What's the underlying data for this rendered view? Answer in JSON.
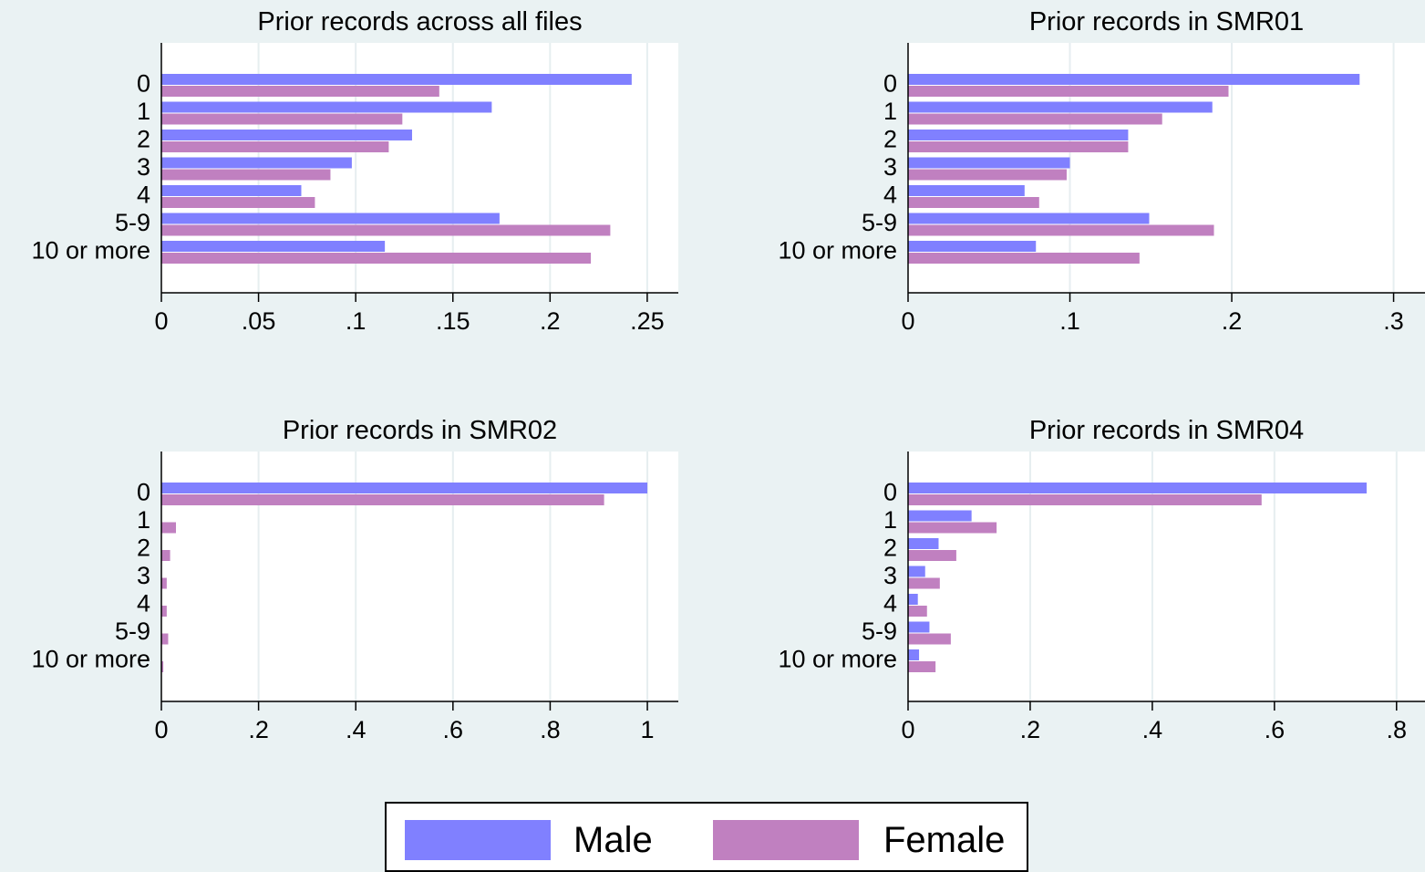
{
  "colors": {
    "male": "#8080ff",
    "female": "#c080c0",
    "plot_bg": "#ffffff",
    "grid": "#e6eef0",
    "page_bg": "#eaf2f3"
  },
  "legend": {
    "male_label": "Male",
    "female_label": "Female",
    "position": "bottom-center"
  },
  "chart_data": [
    {
      "type": "bar",
      "orientation": "horizontal",
      "title": "Prior records across all files",
      "categories": [
        "0",
        "1",
        "2",
        "3",
        "4",
        "5-9",
        "10 or more"
      ],
      "series": [
        {
          "name": "Male",
          "values": [
            0.242,
            0.17,
            0.129,
            0.098,
            0.072,
            0.174,
            0.115
          ]
        },
        {
          "name": "Female",
          "values": [
            0.143,
            0.124,
            0.117,
            0.087,
            0.079,
            0.231,
            0.221
          ]
        }
      ],
      "xlim": [
        0,
        0.266
      ],
      "xticks": [
        0,
        0.05,
        0.1,
        0.15,
        0.2,
        0.25
      ],
      "xtick_labels": [
        "0",
        ".05",
        ".1",
        ".15",
        ".2",
        ".25"
      ],
      "grid": true
    },
    {
      "type": "bar",
      "orientation": "horizontal",
      "title": "Prior records in SMR01",
      "categories": [
        "0",
        "1",
        "2",
        "3",
        "4",
        "5-9",
        "10 or more"
      ],
      "series": [
        {
          "name": "Male",
          "values": [
            0.279,
            0.188,
            0.136,
            0.1,
            0.072,
            0.149,
            0.079
          ]
        },
        {
          "name": "Female",
          "values": [
            0.198,
            0.157,
            0.136,
            0.098,
            0.081,
            0.189,
            0.143
          ]
        }
      ],
      "xlim": [
        0,
        0.3194
      ],
      "xticks": [
        0,
        0.1,
        0.2,
        0.3
      ],
      "xtick_labels": [
        "0",
        ".1",
        ".2",
        ".3"
      ],
      "grid": true
    },
    {
      "type": "bar",
      "orientation": "horizontal",
      "title": "Prior records in SMR02",
      "categories": [
        "0",
        "1",
        "2",
        "3",
        "4",
        "5-9",
        "10 or more"
      ],
      "series": [
        {
          "name": "Male",
          "values": [
            1.0,
            0,
            0,
            0,
            0,
            0,
            0
          ]
        },
        {
          "name": "Female",
          "values": [
            0.911,
            0.03,
            0.018,
            0.011,
            0.011,
            0.014,
            0.004
          ]
        }
      ],
      "xlim": [
        0,
        1.0637
      ],
      "xticks": [
        0,
        0.2,
        0.4,
        0.6,
        0.8,
        1
      ],
      "xtick_labels": [
        "0",
        ".2",
        ".4",
        ".6",
        ".8",
        "1"
      ],
      "grid": true
    },
    {
      "type": "bar",
      "orientation": "horizontal",
      "title": "Prior records in SMR04",
      "categories": [
        "0",
        "1",
        "2",
        "3",
        "4",
        "5-9",
        "10 or more"
      ],
      "series": [
        {
          "name": "Male",
          "values": [
            0.751,
            0.104,
            0.05,
            0.028,
            0.016,
            0.035,
            0.018
          ]
        },
        {
          "name": "Female",
          "values": [
            0.579,
            0.145,
            0.079,
            0.052,
            0.031,
            0.07,
            0.045
          ]
        }
      ],
      "xlim": [
        0,
        0.8466
      ],
      "xticks": [
        0,
        0.2,
        0.4,
        0.6,
        0.8
      ],
      "xtick_labels": [
        "0",
        ".2",
        ".4",
        ".6",
        ".8"
      ],
      "grid": true
    }
  ]
}
